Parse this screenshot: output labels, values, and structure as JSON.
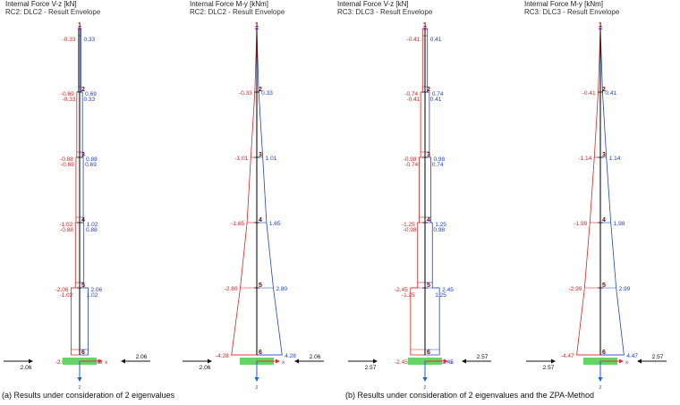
{
  "colors": {
    "negative": "#e02020",
    "positive": "#2040d0",
    "member": "#111111",
    "node_label": "#7a0000",
    "support": "#66d466",
    "axis": "#e03030",
    "axis_z": "#1f5fd0",
    "top_node": "#9b1fb8"
  },
  "axis_labels": {
    "x": "x",
    "z": "z"
  },
  "captions": {
    "a": "(a) Results under consideration of 2 eigenvalues",
    "b": "(b) Results under consideration of 2 eigenvalues and the ZPA-Method"
  },
  "panels": [
    {
      "title": "Internal Force V-z [kN]",
      "subtitle": "RC2: DLC2 - Result Envelope",
      "kind": "shear",
      "nodes": [
        "1",
        "2",
        "3",
        "4",
        "5",
        "6"
      ],
      "neg_values": [
        "-0.33",
        "-0.33",
        "-0.69",
        "-0.69",
        "-0.88",
        "-0.88",
        "-1.02",
        "-1.02",
        "-2.06",
        "-2.06"
      ],
      "pos_values": [
        "0.33",
        "0.33",
        "0.69",
        "0.69",
        "0.88",
        "0.88",
        "1.02",
        "1.02",
        "2.06",
        "2.06"
      ],
      "base_force_left": "2.06",
      "base_force_right": "2.06"
    },
    {
      "title": "Internal Force M-y [kNm]",
      "subtitle": "RC2: DLC2 - Result Envelope",
      "kind": "moment",
      "nodes": [
        "1",
        "2",
        "3",
        "4",
        "5",
        "6"
      ],
      "neg_values": [
        "-0.33",
        "-1.01",
        "-1.65",
        "-2.80",
        "-4.28"
      ],
      "pos_values": [
        "0.33",
        "1.01",
        "1.65",
        "2.80",
        "4.28"
      ],
      "base_force_left": "2.06",
      "base_force_right": "2.06"
    },
    {
      "title": "Internal Force V-z [kN]",
      "subtitle": "RC3: DLC3 - Result Envelope",
      "kind": "shear",
      "nodes": [
        "1",
        "2",
        "3",
        "4",
        "5",
        "6"
      ],
      "neg_values": [
        "-0.41",
        "-0.41",
        "-0.74",
        "-0.74",
        "-0.98",
        "-0.98",
        "-1.25",
        "-1.25",
        "-2.45",
        "-2.45"
      ],
      "pos_values": [
        "0.41",
        "0.41",
        "0.74",
        "0.74",
        "0.98",
        "0.98",
        "1.25",
        "1.25",
        "2.45",
        "2.45"
      ],
      "base_force_left": "2.57",
      "base_force_right": "2.57"
    },
    {
      "title": "Internal Force M-y [kNm]",
      "subtitle": "RC3: DLC3 - Result Envelope",
      "kind": "moment",
      "nodes": [
        "1",
        "2",
        "3",
        "4",
        "5",
        "6"
      ],
      "neg_values": [
        "-0.41",
        "-1.14",
        "-1.99",
        "-2.99",
        "-4.47"
      ],
      "pos_values": [
        "0.41",
        "1.14",
        "1.98",
        "2.99",
        "4.47"
      ],
      "base_force_left": "2.57",
      "base_force_right": "2.57"
    }
  ]
}
